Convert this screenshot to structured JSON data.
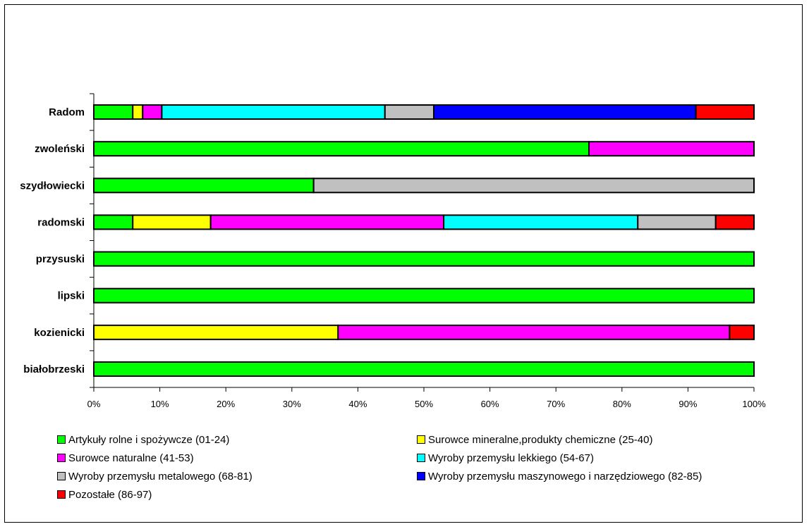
{
  "chart_data": {
    "type": "bar",
    "orientation": "horizontal",
    "stacked": "percent",
    "categories": [
      "Radom",
      "zwoleński",
      "szydłowiecki",
      "radomski",
      "przysuski",
      "lipski",
      "kozienicki",
      "białobrzeski"
    ],
    "series": [
      {
        "name": "Artykuły rolne i spożywcze (01-24)",
        "color": "#00ff00",
        "values": [
          5.9,
          75.0,
          33.3,
          5.9,
          100,
          100,
          0,
          100
        ]
      },
      {
        "name": "Surowce mineralne,produkty chemiczne (25-40)",
        "color": "#ffff00",
        "values": [
          1.5,
          0,
          0,
          11.8,
          0,
          0,
          37.0,
          0
        ]
      },
      {
        "name": "Surowce naturalne (41-53)",
        "color": "#ff00ff",
        "values": [
          2.9,
          25.0,
          0,
          35.3,
          0,
          0,
          59.3,
          0
        ]
      },
      {
        "name": "Wyroby przemysłu lekkiego (54-67)",
        "color": "#00ffff",
        "values": [
          33.8,
          0,
          0,
          29.4,
          0,
          0,
          0,
          0
        ]
      },
      {
        "name": "Wyroby przemysłu metalowego (68-81)",
        "color": "#c0c0c0",
        "values": [
          7.4,
          0,
          66.7,
          11.8,
          0,
          0,
          0,
          0
        ]
      },
      {
        "name": "Wyroby przemysłu maszynowego i narzędziowego (82-85)",
        "color": "#0000ff",
        "values": [
          39.7,
          0,
          0,
          0,
          0,
          0,
          0,
          0
        ]
      },
      {
        "name": "Pozostałe (86-97)",
        "color": "#ff0000",
        "values": [
          8.8,
          0,
          0,
          5.8,
          0,
          0,
          3.7,
          0
        ]
      }
    ],
    "x_ticks": [
      "0%",
      "10%",
      "20%",
      "30%",
      "40%",
      "50%",
      "60%",
      "70%",
      "80%",
      "90%",
      "100%"
    ],
    "xlim": [
      0,
      100
    ],
    "grid": false,
    "legend_position": "bottom"
  }
}
